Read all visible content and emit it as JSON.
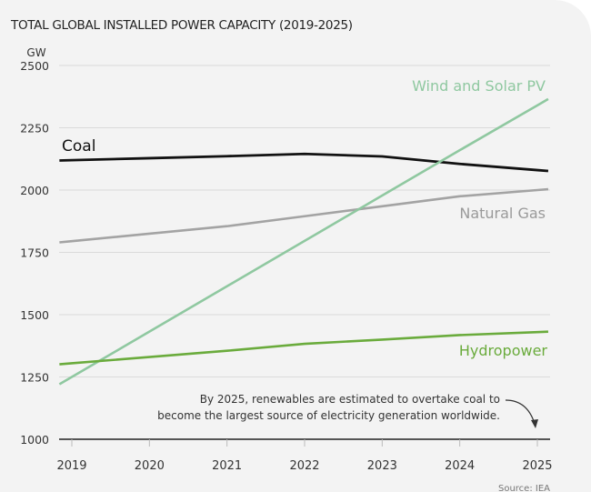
{
  "chart_data": {
    "type": "line",
    "title": "TOTAL GLOBAL INSTALLED POWER CAPACITY (2019-2025)",
    "ylabel": "GW",
    "xlabel": "",
    "ylim": [
      1000,
      2500
    ],
    "yticks": [
      1000,
      1250,
      1500,
      1750,
      2000,
      2250,
      2500
    ],
    "x": [
      2019,
      2020,
      2021,
      2022,
      2023,
      2024,
      2025
    ],
    "grid": true,
    "series": [
      {
        "name": "Coal",
        "color": "#111111",
        "values": [
          2120,
          2128,
          2136,
          2145,
          2135,
          2105,
          2080
        ]
      },
      {
        "name": "Natural Gas",
        "color": "#a3a3a3",
        "values": [
          1795,
          1825,
          1855,
          1895,
          1935,
          1975,
          2000
        ]
      },
      {
        "name": "Wind and Solar PV",
        "color": "#8fc8a0",
        "values": [
          1250,
          1432,
          1614,
          1796,
          1978,
          2160,
          2340
        ]
      },
      {
        "name": "Hydropower",
        "color": "#6aab3c",
        "values": [
          1305,
          1330,
          1355,
          1383,
          1400,
          1418,
          1430
        ]
      }
    ],
    "annotation": [
      "By 2025, renewables are estimated to overtake coal to",
      "become the largest source of electricity generation worldwide."
    ],
    "source": "Source: IEA"
  }
}
